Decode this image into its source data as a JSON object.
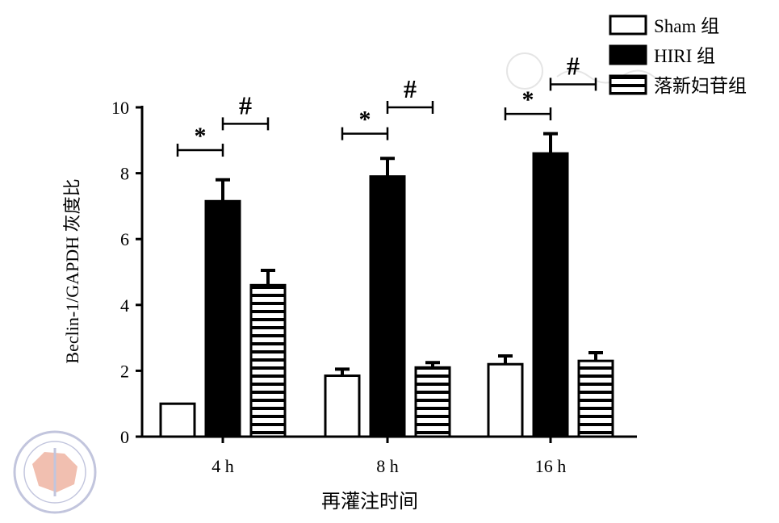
{
  "chart_data": {
    "type": "bar",
    "title": "",
    "xlabel": "再灌注时间",
    "ylabel": "Beclin-1/GAPDH 灰度比",
    "ylim": [
      0,
      10
    ],
    "yticks": [
      "0",
      "2",
      "4",
      "6",
      "8",
      "10"
    ],
    "categories": [
      "4 h",
      "8 h",
      "16 h"
    ],
    "legend_position": "top-right",
    "series": [
      {
        "name": "Sham 组",
        "fill": "white",
        "values": [
          1.0,
          1.85,
          2.2
        ],
        "errors": [
          0.0,
          0.2,
          0.25
        ]
      },
      {
        "name": "HIRI 组",
        "fill": "black",
        "values": [
          7.15,
          7.9,
          8.6
        ],
        "errors": [
          0.65,
          0.55,
          0.6
        ]
      },
      {
        "name": "落新妇苷组",
        "fill": "stripes",
        "values": [
          4.6,
          2.1,
          2.3
        ],
        "errors": [
          0.45,
          0.15,
          0.25
        ]
      }
    ],
    "annotations": [
      {
        "symbol": "*",
        "category": "4 h",
        "between": [
          "Sham 组",
          "HIRI 组"
        ],
        "level": 8.7
      },
      {
        "symbol": "#",
        "category": "4 h",
        "between": [
          "HIRI 组",
          "落新妇苷组"
        ],
        "level": 9.5
      },
      {
        "symbol": "*",
        "category": "8 h",
        "between": [
          "Sham 组",
          "HIRI 组"
        ],
        "level": 9.2
      },
      {
        "symbol": "#",
        "category": "8 h",
        "between": [
          "HIRI 组",
          "落新妇苷组"
        ],
        "level": 10.0
      },
      {
        "symbol": "*",
        "category": "16 h",
        "between": [
          "Sham 组",
          "HIRI 组"
        ],
        "level": 9.8
      },
      {
        "symbol": "#",
        "category": "16 h",
        "between": [
          "HIRI 组",
          "落新妇苷组"
        ],
        "level": 10.7
      }
    ]
  }
}
